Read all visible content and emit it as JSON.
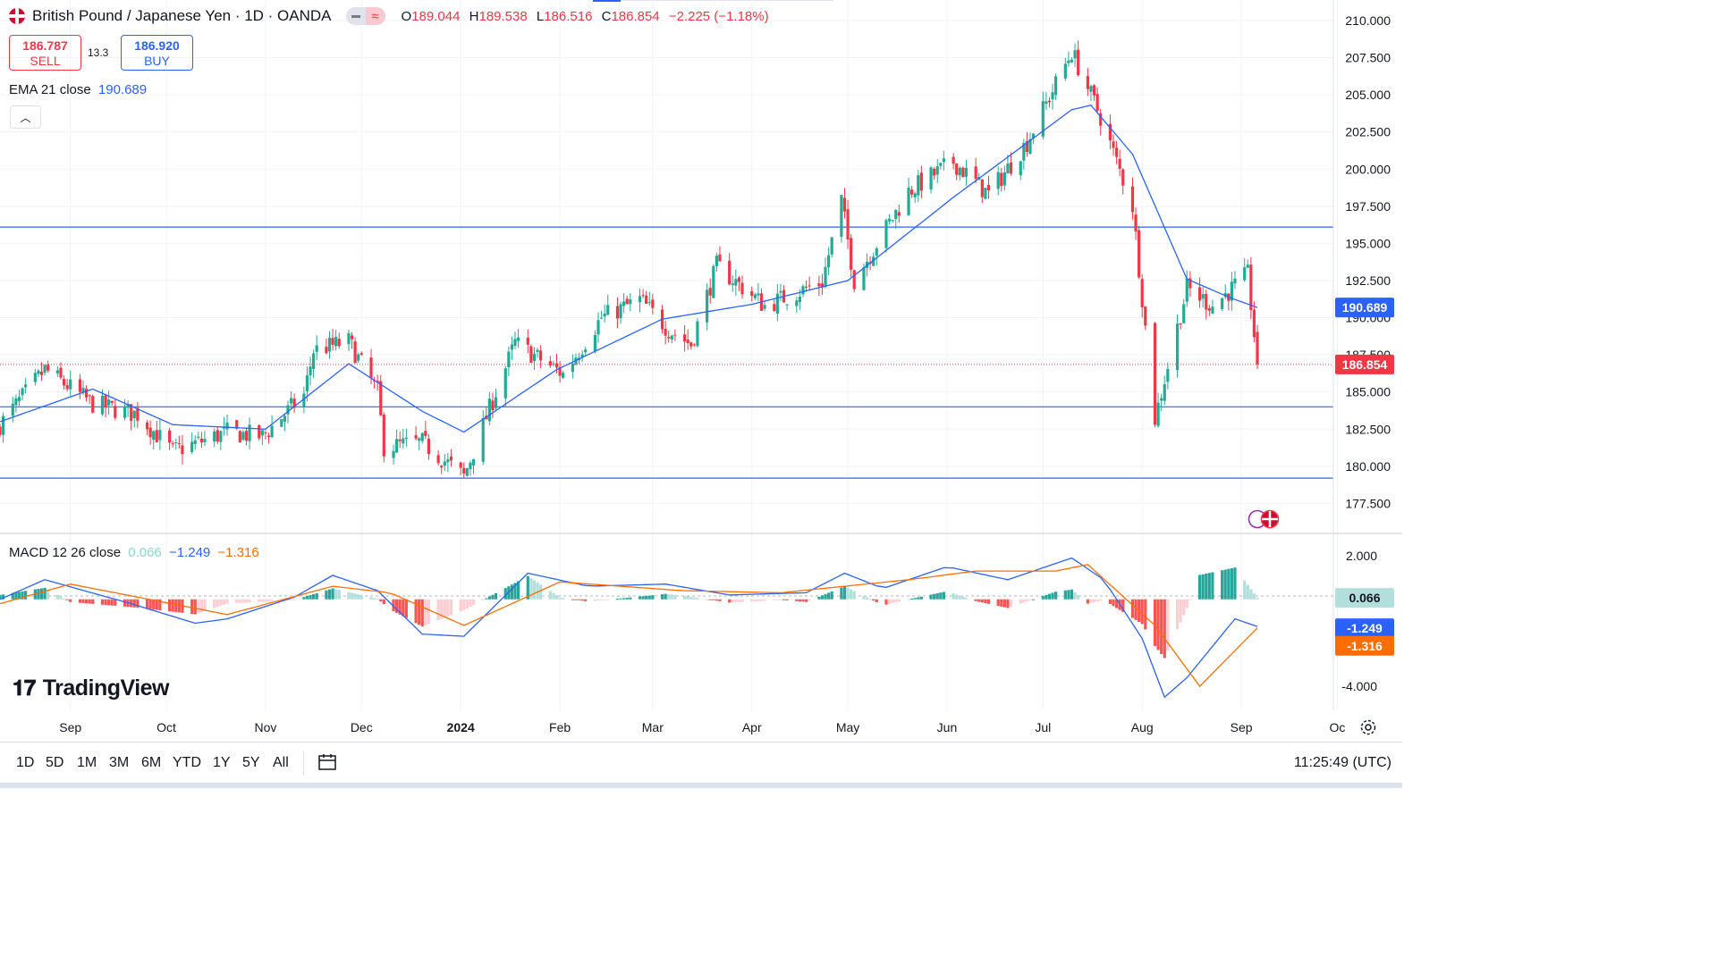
{
  "header": {
    "symbol_title": "British Pound / Japanese Yen · 1D · OANDA",
    "ohlc": {
      "o_label": "O",
      "o": "189.044",
      "h_label": "H",
      "h": "189.538",
      "l_label": "L",
      "l": "186.516",
      "c_label": "C",
      "c": "186.854",
      "change": "−2.225 (−1.18%)"
    }
  },
  "trade": {
    "sell_price": "186.787",
    "sell_label": "SELL",
    "spread": "13.3",
    "buy_price": "186.920",
    "buy_label": "BUY"
  },
  "indicators": {
    "ema_label": "EMA 21 close",
    "ema_value": "190.689",
    "macd_label": "MACD 12 26 close",
    "macd_hist": "0.066",
    "macd_line": "−1.249",
    "macd_signal": "−1.316"
  },
  "branding": {
    "logo": "TradingView"
  },
  "bottom_bar": {
    "ranges": [
      "1D",
      "5D",
      "1M",
      "3M",
      "6M",
      "YTD",
      "1Y",
      "5Y",
      "All"
    ],
    "clock": "11:25:49 (UTC)"
  },
  "colors": {
    "up": "#22ab94",
    "down": "#f23645",
    "ema": "#2962ff",
    "macd": "#2962ff",
    "signal": "#ff6d00",
    "hline": "#2962ff",
    "hist_pos_strong": "#26a69a",
    "hist_pos_weak": "#b2dfdb",
    "hist_neg_strong": "#ff5252",
    "hist_neg_weak": "#ffcdd2"
  },
  "chart_data": [
    {
      "type": "candlestick",
      "title": "British Pound / Japanese Yen · 1D · OANDA",
      "y_axis_ticks": [
        "210.000",
        "207.500",
        "205.000",
        "202.500",
        "200.000",
        "197.500",
        "195.000",
        "192.500",
        "190.000",
        "187.500",
        "185.000",
        "182.500",
        "180.000",
        "177.500"
      ],
      "ylim": [
        175.9,
        210.9
      ],
      "x_axis_ticks": [
        "Sep",
        "Oct",
        "Nov",
        "Dec",
        "2024",
        "Feb",
        "Mar",
        "Apr",
        "May",
        "Jun",
        "Jul",
        "Aug",
        "Sep",
        "Oc"
      ],
      "price_labels": {
        "ema": "190.689",
        "last": "186.854"
      },
      "horizontal_lines": [
        196.1,
        184.0,
        179.2
      ],
      "last_price": 186.854,
      "ema_last": 190.689,
      "series_anchors": [
        {
          "x": "2023-08-10",
          "close": 182.8
        },
        {
          "x": "2023-08-24",
          "close": 186.5
        },
        {
          "x": "2023-09-08",
          "close": 184.2
        },
        {
          "x": "2023-09-22",
          "close": 183.5
        },
        {
          "x": "2023-10-03",
          "close": 181.0
        },
        {
          "x": "2023-10-20",
          "close": 182.3
        },
        {
          "x": "2023-10-31",
          "close": 182.0
        },
        {
          "x": "2023-11-13",
          "close": 184.8
        },
        {
          "x": "2023-11-16",
          "close": 187.8
        },
        {
          "x": "2023-11-27",
          "close": 188.4
        },
        {
          "x": "2023-12-06",
          "close": 185.0
        },
        {
          "x": "2023-12-08",
          "close": 181.3
        },
        {
          "x": "2023-12-20",
          "close": 181.6
        },
        {
          "x": "2024-01-02",
          "close": 179.3
        },
        {
          "x": "2024-01-12",
          "close": 185.0
        },
        {
          "x": "2024-01-18",
          "close": 188.3
        },
        {
          "x": "2024-02-02",
          "close": 186.2
        },
        {
          "x": "2024-02-14",
          "close": 190.0
        },
        {
          "x": "2024-02-26",
          "close": 191.2
        },
        {
          "x": "2024-03-06",
          "close": 189.2
        },
        {
          "x": "2024-03-13",
          "close": 188.2
        },
        {
          "x": "2024-03-21",
          "close": 193.5
        },
        {
          "x": "2024-04-05",
          "close": 190.8
        },
        {
          "x": "2024-04-23",
          "close": 192.4
        },
        {
          "x": "2024-04-29",
          "close": 197.9
        },
        {
          "x": "2024-05-03",
          "close": 192.5
        },
        {
          "x": "2024-05-20",
          "close": 198.5
        },
        {
          "x": "2024-06-03",
          "close": 200.5
        },
        {
          "x": "2024-06-14",
          "close": 198.3
        },
        {
          "x": "2024-06-26",
          "close": 201.8
        },
        {
          "x": "2024-07-10",
          "close": 207.9
        },
        {
          "x": "2024-07-19",
          "close": 203.5
        },
        {
          "x": "2024-07-29",
          "close": 197.5
        },
        {
          "x": "2024-08-05",
          "close": 183.2
        },
        {
          "x": "2024-08-15",
          "close": 192.0
        },
        {
          "x": "2024-08-23",
          "close": 190.8
        },
        {
          "x": "2024-09-03",
          "close": 192.9
        },
        {
          "x": "2024-09-06",
          "close": 186.854
        }
      ],
      "ema_anchors": [
        {
          "x": "2023-08-10",
          "value": 183.0
        },
        {
          "x": "2023-09-08",
          "value": 185.2
        },
        {
          "x": "2023-10-03",
          "value": 182.8
        },
        {
          "x": "2023-11-01",
          "value": 182.5
        },
        {
          "x": "2023-11-27",
          "value": 186.9
        },
        {
          "x": "2023-12-20",
          "value": 183.7
        },
        {
          "x": "2024-01-02",
          "value": 182.3
        },
        {
          "x": "2024-01-31",
          "value": 186.5
        },
        {
          "x": "2024-03-04",
          "value": 189.9
        },
        {
          "x": "2024-04-01",
          "value": 190.9
        },
        {
          "x": "2024-05-01",
          "value": 192.5
        },
        {
          "x": "2024-06-03",
          "value": 198.1
        },
        {
          "x": "2024-07-10",
          "value": 204.0
        },
        {
          "x": "2024-07-16",
          "value": 204.3
        },
        {
          "x": "2024-07-29",
          "value": 201.0
        },
        {
          "x": "2024-08-15",
          "value": 192.6
        },
        {
          "x": "2024-08-29",
          "value": 191.3
        },
        {
          "x": "2024-09-06",
          "value": 190.689
        }
      ]
    },
    {
      "type": "line",
      "title": "MACD 12 26 close",
      "y_axis_ticks": [
        "2.000",
        "-4.000"
      ],
      "ylim": [
        -4.9,
        2.7
      ],
      "price_labels": {
        "hist": "0.066",
        "macd": "-1.249",
        "signal": "-1.316"
      },
      "macd_anchors": [
        {
          "x": "2023-08-10",
          "value": 0.0
        },
        {
          "x": "2023-08-24",
          "value": 0.9
        },
        {
          "x": "2023-09-20",
          "value": -0.2
        },
        {
          "x": "2023-10-10",
          "value": -1.1
        },
        {
          "x": "2023-10-20",
          "value": -0.9
        },
        {
          "x": "2023-11-10",
          "value": 0.1
        },
        {
          "x": "2023-11-22",
          "value": 1.1
        },
        {
          "x": "2023-12-06",
          "value": 0.4
        },
        {
          "x": "2023-12-20",
          "value": -1.6
        },
        {
          "x": "2024-01-02",
          "value": -1.7
        },
        {
          "x": "2024-01-22",
          "value": 1.2
        },
        {
          "x": "2024-02-10",
          "value": 0.6
        },
        {
          "x": "2024-03-05",
          "value": 0.7
        },
        {
          "x": "2024-03-25",
          "value": 0.2
        },
        {
          "x": "2024-04-18",
          "value": 0.3
        },
        {
          "x": "2024-04-30",
          "value": 1.2
        },
        {
          "x": "2024-05-12",
          "value": 0.5
        },
        {
          "x": "2024-06-01",
          "value": 1.5
        },
        {
          "x": "2024-06-20",
          "value": 0.9
        },
        {
          "x": "2024-07-10",
          "value": 1.9
        },
        {
          "x": "2024-07-20",
          "value": 0.9
        },
        {
          "x": "2024-08-01",
          "value": -1.8
        },
        {
          "x": "2024-08-08",
          "value": -4.5
        },
        {
          "x": "2024-08-15",
          "value": -3.6
        },
        {
          "x": "2024-08-30",
          "value": -0.9
        },
        {
          "x": "2024-09-06",
          "value": -1.249
        }
      ],
      "signal_anchors": [
        {
          "x": "2023-08-10",
          "value": -0.2
        },
        {
          "x": "2023-09-01",
          "value": 0.7
        },
        {
          "x": "2023-10-20",
          "value": -0.7
        },
        {
          "x": "2023-11-22",
          "value": 0.6
        },
        {
          "x": "2023-12-10",
          "value": 0.3
        },
        {
          "x": "2024-01-02",
          "value": -1.2
        },
        {
          "x": "2024-02-01",
          "value": 0.8
        },
        {
          "x": "2024-03-10",
          "value": 0.4
        },
        {
          "x": "2024-04-10",
          "value": 0.3
        },
        {
          "x": "2024-05-20",
          "value": 0.9
        },
        {
          "x": "2024-06-10",
          "value": 1.3
        },
        {
          "x": "2024-07-05",
          "value": 1.3
        },
        {
          "x": "2024-07-15",
          "value": 1.6
        },
        {
          "x": "2024-08-05",
          "value": -1.2
        },
        {
          "x": "2024-08-19",
          "value": -4.0
        },
        {
          "x": "2024-09-06",
          "value": -1.316
        }
      ]
    }
  ]
}
